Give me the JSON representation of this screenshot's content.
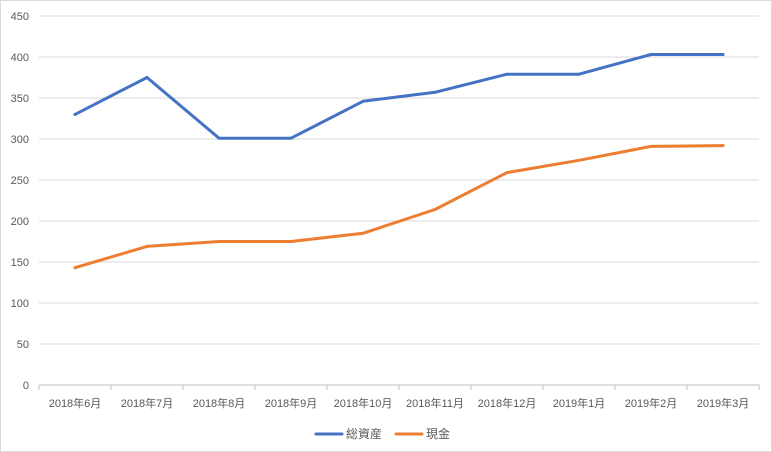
{
  "chart_data": {
    "type": "line",
    "title": "",
    "xlabel": "",
    "ylabel": "",
    "categories": [
      "2018年6月",
      "2018年7月",
      "2018年8月",
      "2018年9月",
      "2018年10月",
      "2018年11月",
      "2018年12月",
      "2019年1月",
      "2019年2月",
      "2019年3月"
    ],
    "ylim": [
      0,
      450
    ],
    "yticks": [
      0,
      50,
      100,
      150,
      200,
      250,
      300,
      350,
      400,
      450
    ],
    "grid": true,
    "legend": "bottom",
    "series": [
      {
        "name": "総資産",
        "color": "#4472c4",
        "values": [
          330,
          375,
          301,
          301,
          346,
          357,
          379,
          379,
          403,
          403
        ]
      },
      {
        "name": "現金",
        "color": "#ed7d31",
        "values": [
          143,
          169,
          175,
          175,
          185,
          214,
          259,
          274,
          291,
          292
        ]
      }
    ]
  }
}
